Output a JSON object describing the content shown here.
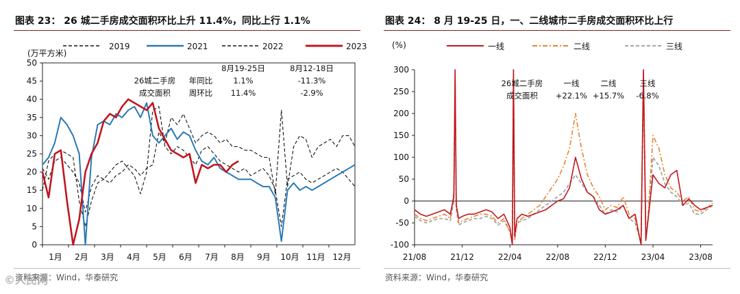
{
  "watermark": "©人民网",
  "colors": {
    "c2019": "#111111",
    "c2021": "#2878b5",
    "c2022": "#111111",
    "c2023": "#c0161f",
    "tier1": "#c0161f",
    "tier2": "#e8822e",
    "tier3": "#a6a6a6"
  },
  "chart_data": [
    {
      "type": "line",
      "title": "图表 23： 26 城二手房成交面积环比上升 11.4%，同比上行 1.1%",
      "ylabel": "(万平方米)",
      "ylim": [
        0,
        50
      ],
      "yticks": [
        "0",
        "5",
        "10",
        "15",
        "20",
        "25",
        "30",
        "35",
        "40",
        "45",
        "50"
      ],
      "xticks": [
        "1月",
        "2月",
        "3月",
        "4月",
        "5月",
        "6月",
        "7月",
        "8月",
        "9月",
        "10月",
        "11月",
        "12月"
      ],
      "x_range_weeks": [
        1,
        52
      ],
      "series": [
        {
          "name": "2019",
          "style": "dashed",
          "x": [
            1,
            2,
            3,
            4,
            5,
            6,
            7,
            8,
            9,
            10,
            11,
            12,
            13,
            14,
            15,
            16,
            17,
            18,
            19,
            20,
            21,
            22,
            23,
            24,
            25,
            26,
            27,
            28,
            29,
            30,
            31,
            32,
            33,
            34,
            35,
            36,
            37,
            38,
            39,
            40,
            41,
            42,
            43,
            44,
            45,
            46,
            47,
            48,
            49,
            50,
            51,
            52
          ],
          "values": [
            15,
            23,
            25,
            26,
            25,
            24,
            12,
            5,
            12,
            17,
            18,
            17,
            19,
            20,
            22,
            21,
            19,
            21,
            22,
            31,
            28,
            35,
            33,
            36,
            32,
            28,
            30,
            31,
            30,
            28,
            29,
            27,
            27,
            26,
            26,
            25,
            24,
            24,
            14,
            37,
            16,
            27,
            30,
            29,
            24,
            27,
            28,
            29,
            27,
            30,
            30,
            27
          ]
        },
        {
          "name": "2021",
          "style": "solid",
          "x": [
            1,
            2,
            3,
            4,
            5,
            6,
            7,
            8,
            9,
            10,
            11,
            12,
            13,
            14,
            15,
            16,
            17,
            18,
            19,
            20,
            21,
            22,
            23,
            24,
            25,
            26,
            27,
            28,
            29,
            30,
            31,
            32,
            33,
            34,
            35,
            36,
            37,
            38,
            39,
            40,
            41,
            42,
            43,
            44,
            45,
            46,
            47,
            48,
            49,
            50,
            51,
            52
          ],
          "values": [
            22,
            24,
            28,
            35,
            33,
            30,
            25,
            0,
            24,
            33,
            34,
            33,
            36,
            35,
            37,
            38,
            35,
            39,
            30,
            28,
            30,
            32,
            29,
            31,
            30,
            26,
            23,
            22,
            24,
            21,
            20,
            19,
            18,
            18,
            18,
            17,
            16,
            16,
            13,
            1,
            15,
            17,
            15,
            16,
            15,
            16,
            17,
            18,
            19,
            20,
            21,
            22
          ]
        },
        {
          "name": "2022",
          "style": "dashed",
          "x": [
            1,
            2,
            3,
            4,
            5,
            6,
            7,
            8,
            9,
            10,
            11,
            12,
            13,
            14,
            15,
            16,
            17,
            18,
            19,
            20,
            21,
            22,
            23,
            24,
            25,
            26,
            27,
            28,
            29,
            30,
            31,
            32,
            33,
            34,
            35,
            36,
            37,
            38,
            39,
            40,
            41,
            42,
            43,
            44,
            45,
            46,
            47,
            48,
            49,
            50,
            51,
            52
          ],
          "values": [
            21,
            18,
            23,
            24,
            22,
            20,
            17,
            9,
            16,
            19,
            18,
            20,
            22,
            23,
            21,
            19,
            14,
            20,
            37,
            38,
            27,
            25,
            27,
            26,
            24,
            22,
            26,
            27,
            25,
            23,
            22,
            21,
            20,
            21,
            19,
            20,
            21,
            19,
            15,
            5,
            18,
            19,
            20,
            18,
            17,
            18,
            19,
            20,
            21,
            20,
            18,
            16
          ]
        },
        {
          "name": "2023",
          "style": "solid",
          "x": [
            1,
            2,
            3,
            4,
            5,
            6,
            7,
            8,
            9,
            10,
            11,
            12,
            13,
            14,
            15,
            16,
            17,
            18,
            19,
            20,
            21,
            22,
            23,
            24,
            25,
            26,
            27,
            28,
            29,
            30,
            31,
            32,
            33
          ],
          "values": [
            20,
            13,
            25,
            26,
            12,
            0,
            7,
            20,
            25,
            28,
            34,
            36,
            35,
            38,
            40,
            39,
            38,
            37,
            39,
            32,
            29,
            26,
            25,
            24,
            25,
            17,
            22,
            21,
            22,
            22,
            20,
            22,
            23
          ]
        }
      ],
      "annotation": {
        "col1": "8月19-25日",
        "col2": "8月12-18日",
        "row_label": [
          "26城二手房",
          "成交面积"
        ],
        "rows": [
          {
            "label": "年同比",
            "v1": "1.1%",
            "v2": "-11.3%"
          },
          {
            "label": "周环比",
            "v1": "11.4%",
            "v2": "-2.9%"
          }
        ]
      },
      "source": "资料来源：Wind，华泰研究"
    },
    {
      "type": "line",
      "title": "图表 24： 8 月 19-25 日，一、二线城市二手房成交面积环比上行",
      "ylabel": "(%)",
      "ylim": [
        -100,
        300
      ],
      "yticks": [
        "-100",
        "-50",
        "0",
        "50",
        "100",
        "150",
        "200",
        "250",
        "300"
      ],
      "xticks": [
        "21/08",
        "21/12",
        "22/04",
        "22/08",
        "22/12",
        "23/04",
        "23/08"
      ],
      "x_range_months": [
        0,
        25
      ],
      "series": [
        {
          "name": "一线",
          "style": "solid",
          "x": [
            0,
            0.5,
            1,
            1.5,
            2,
            2.5,
            3,
            3.3,
            3.4,
            3.5,
            3.7,
            4,
            4.5,
            5,
            5.5,
            6,
            6.5,
            7,
            7.5,
            8,
            8.2,
            8.3,
            8.4,
            8.6,
            9,
            9.5,
            10,
            10.5,
            11,
            11.5,
            12,
            12.5,
            13,
            13.5,
            14,
            14.5,
            15,
            15.5,
            16,
            16.5,
            17,
            17.5,
            18,
            18.5,
            19,
            19.2,
            19.4,
            19.6,
            20,
            20.5,
            21,
            21.5,
            22,
            22.5,
            23,
            23.5,
            24,
            24.5,
            25
          ],
          "values": [
            -20,
            -30,
            -35,
            -30,
            -25,
            -20,
            -30,
            10,
            300,
            -10,
            -40,
            -35,
            -30,
            -30,
            -25,
            -20,
            -25,
            -40,
            -30,
            -60,
            -100,
            300,
            -80,
            -40,
            -30,
            -35,
            -30,
            -25,
            -20,
            -10,
            0,
            5,
            30,
            100,
            50,
            20,
            10,
            -20,
            -30,
            -25,
            -20,
            -10,
            -40,
            -30,
            -100,
            300,
            -90,
            -40,
            60,
            40,
            30,
            60,
            70,
            -10,
            5,
            -10,
            -20,
            -15,
            -10
          ]
        },
        {
          "name": "二线",
          "style": "dashdot",
          "x": [
            0,
            0.5,
            1,
            1.5,
            2,
            2.5,
            3,
            3.3,
            3.4,
            3.5,
            3.7,
            4,
            4.5,
            5,
            5.5,
            6,
            6.5,
            7,
            7.5,
            8,
            8.2,
            8.3,
            8.4,
            8.6,
            9,
            9.5,
            10,
            10.5,
            11,
            11.5,
            12,
            12.5,
            13,
            13.5,
            14,
            14.5,
            15,
            15.5,
            16,
            16.5,
            17,
            17.5,
            18,
            18.5,
            19,
            19.2,
            19.4,
            19.6,
            20,
            20.5,
            21,
            21.5,
            22,
            22.5,
            23,
            23.5,
            24,
            24.5,
            25
          ],
          "values": [
            -30,
            -40,
            -45,
            -40,
            -35,
            -30,
            -40,
            20,
            300,
            0,
            -50,
            -45,
            -40,
            -35,
            -30,
            -30,
            -35,
            -50,
            -40,
            -70,
            -100,
            300,
            -90,
            -50,
            -40,
            -30,
            -20,
            -10,
            10,
            30,
            50,
            80,
            120,
            200,
            120,
            60,
            30,
            10,
            -20,
            -10,
            -15,
            10,
            -30,
            -40,
            -100,
            300,
            -90,
            -30,
            150,
            120,
            60,
            30,
            20,
            0,
            10,
            -20,
            -25,
            -15,
            -5
          ]
        },
        {
          "name": "三线",
          "style": "dashed",
          "x": [
            0,
            0.5,
            1,
            1.5,
            2,
            2.5,
            3,
            3.3,
            3.4,
            3.5,
            3.7,
            4,
            4.5,
            5,
            5.5,
            6,
            6.5,
            7,
            7.5,
            8,
            8.2,
            8.3,
            8.4,
            8.6,
            9,
            9.5,
            10,
            10.5,
            11,
            11.5,
            12,
            12.5,
            13,
            13.5,
            14,
            14.5,
            15,
            15.5,
            16,
            16.5,
            17,
            17.5,
            18,
            18.5,
            19,
            19.2,
            19.4,
            19.6,
            20,
            20.5,
            21,
            21.5,
            22,
            22.5,
            23,
            23.5,
            24,
            24.5,
            25
          ],
          "values": [
            -35,
            -45,
            -50,
            -45,
            -40,
            -40,
            -45,
            0,
            280,
            -20,
            -55,
            -50,
            -45,
            -40,
            -40,
            -35,
            -40,
            -55,
            -45,
            -70,
            -95,
            280,
            -85,
            -50,
            -45,
            -40,
            -30,
            -20,
            -10,
            0,
            10,
            20,
            40,
            60,
            40,
            20,
            10,
            -10,
            -30,
            -20,
            -25,
            -10,
            -40,
            -50,
            -95,
            280,
            -85,
            -40,
            100,
            80,
            40,
            20,
            10,
            -10,
            -5,
            -30,
            -30,
            -20,
            -10
          ]
        }
      ],
      "annotation": {
        "row_label": [
          "26城二手房",
          "成交面积"
        ],
        "items": [
          {
            "label": "一线",
            "value": "+22.1%"
          },
          {
            "label": "二线",
            "value": "+15.7%"
          },
          {
            "label": "三线",
            "value": "-6.8%"
          }
        ]
      },
      "source": "资料来源：Wind，华泰研究"
    }
  ]
}
